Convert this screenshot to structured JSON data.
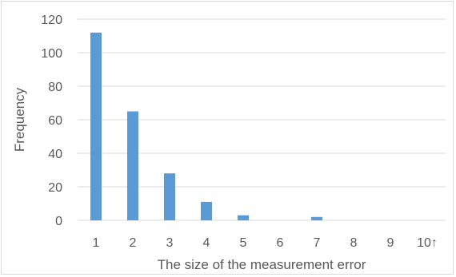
{
  "chart_data": {
    "type": "bar",
    "categories": [
      "1",
      "2",
      "3",
      "4",
      "5",
      "6",
      "7",
      "8",
      "9",
      "10↑"
    ],
    "series": [
      {
        "values": [
          112,
          65,
          28,
          11,
          3,
          0,
          2,
          0,
          0,
          0
        ]
      }
    ],
    "xlabel": "The size of the measurement error",
    "ylabel": "Frequency",
    "ylim": [
      0,
      120
    ],
    "yticks": [
      0,
      20,
      40,
      60,
      80,
      100,
      120
    ],
    "grid": true,
    "legend": "none",
    "colors": {
      "bar": "#5b9bd5",
      "grid": "#d9d9d9",
      "text": "#595959"
    }
  }
}
